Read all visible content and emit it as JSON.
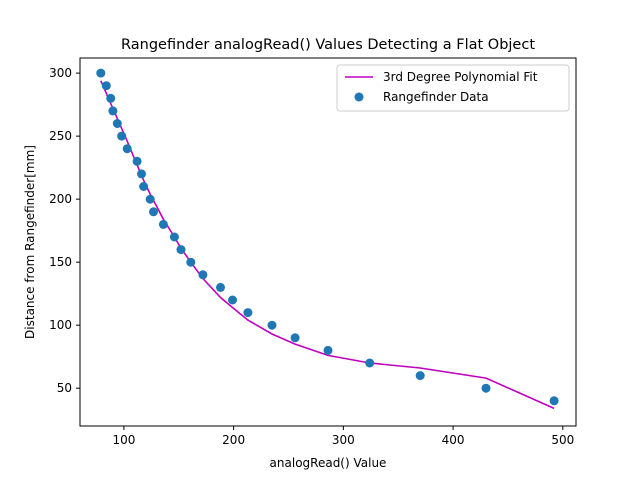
{
  "chart_data": {
    "type": "scatter",
    "title": "Rangefinder analogRead() Values Detecting a Flat Object",
    "xlabel": "analogRead() Value",
    "ylabel": "Distance from Rangefinder[mm]",
    "xlim": [
      60,
      512
    ],
    "ylim": [
      20,
      312
    ],
    "xticks": [
      100,
      200,
      300,
      400,
      500
    ],
    "yticks": [
      50,
      100,
      150,
      200,
      250,
      300
    ],
    "legend_position": "upper-right",
    "series": [
      {
        "name": "3rd Degree Polynomial Fit",
        "kind": "line",
        "color": "#bf00bf",
        "x": [
          79,
          84,
          88,
          91,
          94,
          98,
          103,
          112,
          116,
          118,
          124,
          127,
          136,
          146,
          152,
          161,
          172,
          188,
          199,
          213,
          235,
          256,
          286,
          324,
          370,
          430,
          492
        ],
        "y": [
          294,
          284,
          276,
          270,
          264,
          256,
          246,
          227,
          219,
          215,
          204,
          199,
          184,
          170,
          161,
          150,
          137,
          122,
          114,
          104,
          93,
          85,
          76,
          70,
          66,
          58,
          34
        ]
      },
      {
        "name": "Rangefinder Data",
        "kind": "scatter",
        "color": "#1f77b4",
        "x": [
          79,
          84,
          88,
          90,
          94,
          98,
          103,
          112,
          116,
          118,
          124,
          127,
          136,
          146,
          152,
          161,
          172,
          188,
          199,
          213,
          235,
          256,
          286,
          324,
          370,
          430,
          492
        ],
        "y": [
          300,
          290,
          280,
          270,
          260,
          250,
          240,
          230,
          220,
          210,
          200,
          190,
          180,
          170,
          160,
          150,
          140,
          130,
          120,
          110,
          100,
          90,
          80,
          70,
          60,
          50,
          40
        ]
      }
    ]
  }
}
